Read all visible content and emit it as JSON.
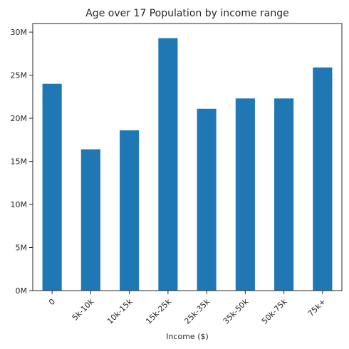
{
  "chart_data": {
    "type": "bar",
    "title": "Age over 17 Population by income range",
    "xlabel": "Income ($)",
    "ylabel": "",
    "categories": [
      "0",
      "5k-10k",
      "10k-15k",
      "15k-25k",
      "25k-35k",
      "35k-50k",
      "50k-75k",
      "75k+"
    ],
    "values": [
      24000000,
      16400000,
      18600000,
      29300000,
      21100000,
      22300000,
      22300000,
      25900000
    ],
    "ylim": [
      0,
      31000000
    ],
    "yticks": [
      0,
      5000000,
      10000000,
      15000000,
      20000000,
      25000000,
      30000000
    ],
    "ytick_labels": [
      "0M",
      "5M",
      "10M",
      "15M",
      "20M",
      "25M",
      "30M"
    ],
    "grid": false,
    "bar_color": "#1f77b4"
  }
}
